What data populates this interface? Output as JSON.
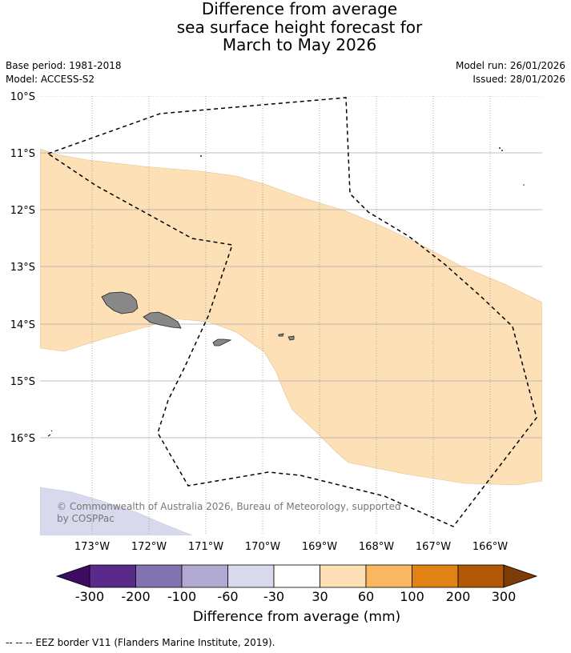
{
  "title": {
    "line1": "Difference from average",
    "line2": "sea surface height forecast for",
    "line3": "March to May 2026"
  },
  "meta": {
    "base_period": "Base period: 1981-2018",
    "model": "Model: ACCESS-S2",
    "model_run": "Model run: 26/01/2026",
    "issued": "Issued: 28/01/2026"
  },
  "map": {
    "lat_labels": [
      "10°S",
      "11°S",
      "12°S",
      "13°S",
      "14°S",
      "15°S",
      "16°S"
    ],
    "lon_labels": [
      "173°W",
      "172°W",
      "171°W",
      "170°W",
      "169°W",
      "168°W",
      "167°W",
      "166°W"
    ],
    "copyright": "© Commonwealth of Australia 2026, Bureau of Meteorology, supported by COSPPac",
    "colors": {
      "land": "#888888",
      "band_30_60": "#fde0b6",
      "band_m60_m30": "#d8d9ec"
    }
  },
  "colorbar": {
    "title": "Difference from average (mm)",
    "labels": [
      "-300",
      "-200",
      "-100",
      "-60",
      "-30",
      "30",
      "60",
      "100",
      "200",
      "300"
    ],
    "colors": [
      "#3f0a62",
      "#5a2a8a",
      "#8273b0",
      "#b1a9d2",
      "#d8d9ec",
      "#ffffff",
      "#fde0b6",
      "#fbb660",
      "#e08214",
      "#b35806",
      "#7f3b08"
    ]
  },
  "footer": "--  --  -- EEZ border V11 (Flanders Marine Institute, 2019)."
}
